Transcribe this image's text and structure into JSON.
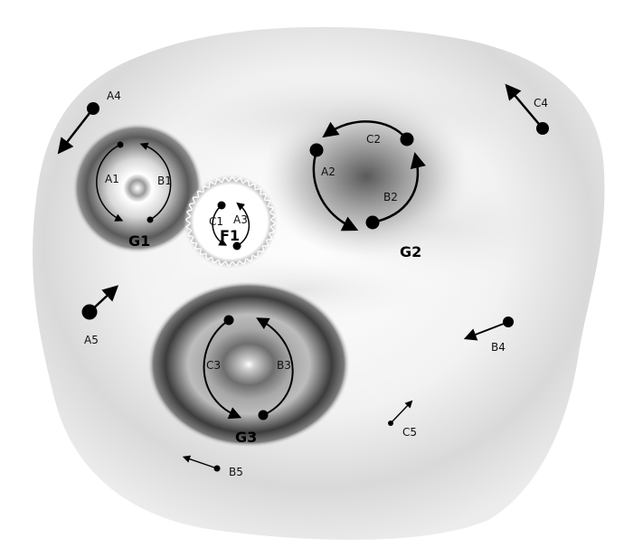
{
  "regions": {
    "g1": {
      "label": "G1"
    },
    "g2": {
      "label": "G2"
    },
    "g3": {
      "label": "G3"
    },
    "f1": {
      "label": "F1"
    }
  },
  "orbit_labels": {
    "a1": "A1",
    "b1": "B1",
    "a2": "A2",
    "b2": "B2",
    "c2": "C2",
    "c1": "C1",
    "a3": "A3",
    "c3": "C3",
    "b3": "B3"
  },
  "free_vectors": {
    "a4": "A4",
    "c4": "C4",
    "a5": "A5",
    "b4": "B4",
    "c5": "C5",
    "b5": "B5"
  }
}
